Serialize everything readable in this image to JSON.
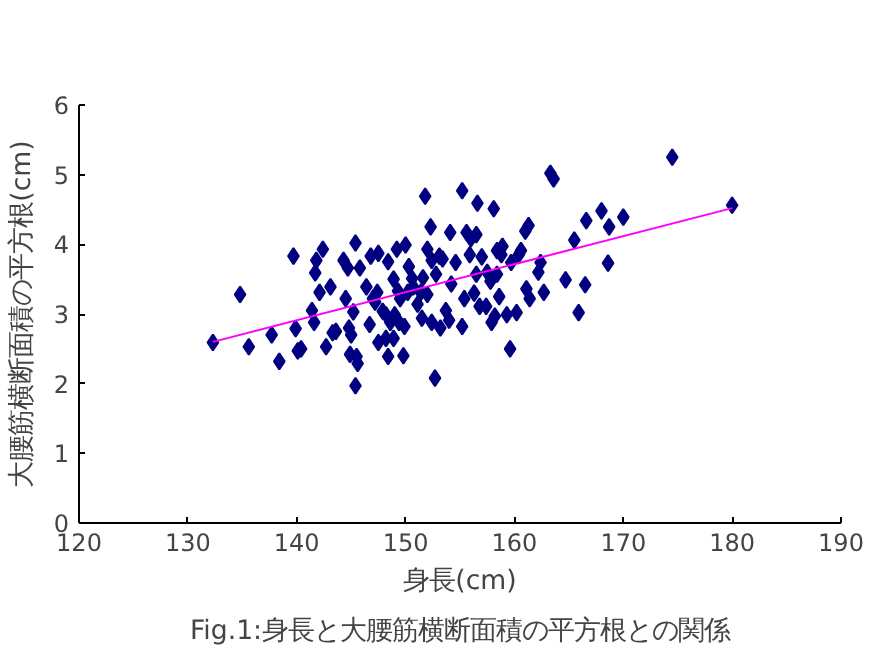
{
  "chart_data": {
    "type": "scatter",
    "title": "Fig.1:身長と大腰筋横断面積の平方根との関係",
    "xlabel": "身長(cm)",
    "ylabel": "大腰筋横断面積の平方根(cm)",
    "xlim": [
      120,
      190
    ],
    "xticks": [
      120,
      130,
      140,
      150,
      160,
      170,
      180,
      190
    ],
    "ylim": [
      0,
      6
    ],
    "yticks": [
      0,
      1,
      2,
      3,
      4,
      5,
      6
    ],
    "grid": false,
    "marker": "diamond",
    "series": [
      {
        "color": "#000080",
        "x": [
          132.3,
          134.8,
          135.6,
          137.7,
          138.4,
          139.7,
          139.9,
          140.1,
          140.4,
          141.4,
          141.6,
          141.7,
          141.8,
          142.4,
          142.1,
          142.7,
          143.1,
          143.3,
          143.6,
          144.3,
          144.7,
          144.5,
          144.8,
          144.9,
          145.0,
          145.4,
          145.2,
          145.4,
          145.6,
          145.5,
          145.8,
          146.4,
          146.7,
          146.8,
          147.0,
          147.4,
          147.5,
          147.5,
          147.9,
          148.2,
          148.4,
          148.4,
          148.6,
          148.9,
          149.0,
          149.2,
          149.3,
          149.4,
          149.8,
          149.9,
          150.0,
          150.2,
          150.3,
          150.6,
          151.1,
          151.4,
          151.5,
          151.6,
          151.8,
          152.0,
          152.0,
          152.3,
          152.4,
          152.4,
          152.7,
          152.8,
          153.1,
          153.2,
          153.4,
          153.7,
          154.0,
          154.1,
          154.2,
          155.2,
          155.2,
          155.4,
          155.6,
          155.9,
          156.0,
          156.3,
          156.5,
          156.6,
          156.8,
          157.0,
          157.4,
          157.5,
          157.8,
          157.9,
          158.1,
          158.2,
          158.4,
          158.6,
          158.8,
          158.9,
          159.3,
          159.6,
          159.7,
          160.2,
          160.4,
          160.6,
          161.0,
          161.1,
          161.3,
          161.4,
          162.2,
          162.4,
          162.7,
          163.3,
          163.6,
          164.7,
          165.5,
          165.9,
          166.5,
          166.6,
          168.0,
          168.7,
          168.6,
          170.0,
          174.5,
          180.0,
          148.2,
          149.5,
          150.7,
          147.2,
          148.9,
          154.6,
          156.5,
          158.4
        ],
        "values": [
          2.59,
          3.28,
          2.53,
          2.7,
          2.32,
          3.83,
          2.79,
          2.47,
          2.5,
          3.05,
          2.88,
          3.59,
          3.77,
          3.93,
          3.31,
          2.53,
          3.39,
          2.73,
          2.75,
          3.77,
          3.66,
          3.22,
          2.8,
          2.42,
          2.7,
          4.02,
          3.03,
          1.97,
          2.29,
          2.39,
          3.66,
          3.39,
          2.85,
          3.83,
          3.22,
          3.31,
          3.87,
          2.59,
          3.04,
          2.65,
          3.75,
          2.39,
          2.88,
          3.5,
          2.99,
          3.93,
          3.33,
          2.88,
          2.4,
          2.82,
          3.99,
          3.31,
          3.68,
          3.51,
          3.14,
          3.31,
          2.94,
          3.52,
          4.69,
          3.28,
          3.93,
          4.25,
          3.77,
          2.88,
          2.08,
          3.57,
          3.83,
          2.8,
          3.79,
          3.05,
          2.91,
          4.17,
          3.43,
          4.77,
          2.82,
          3.22,
          4.17,
          3.85,
          4.08,
          3.3,
          3.57,
          4.59,
          3.11,
          3.82,
          3.11,
          3.6,
          3.47,
          2.88,
          4.51,
          2.97,
          3.57,
          3.25,
          3.85,
          3.97,
          2.99,
          2.5,
          3.74,
          3.02,
          3.85,
          3.91,
          4.19,
          3.36,
          4.27,
          3.22,
          3.6,
          3.74,
          3.31,
          5.02,
          4.94,
          3.49,
          4.06,
          3.02,
          3.42,
          4.34,
          4.48,
          4.25,
          3.73,
          4.39,
          5.25,
          4.56,
          2.99,
          3.22,
          3.39,
          3.17,
          2.65,
          3.74,
          4.14,
          3.91
        ]
      },
      {
        "type": "line",
        "color": "#ff00ff",
        "marker": "none",
        "line_style": "solid",
        "x": [
          132.3,
          180.0
        ],
        "values": [
          2.6,
          4.52
        ]
      }
    ]
  }
}
